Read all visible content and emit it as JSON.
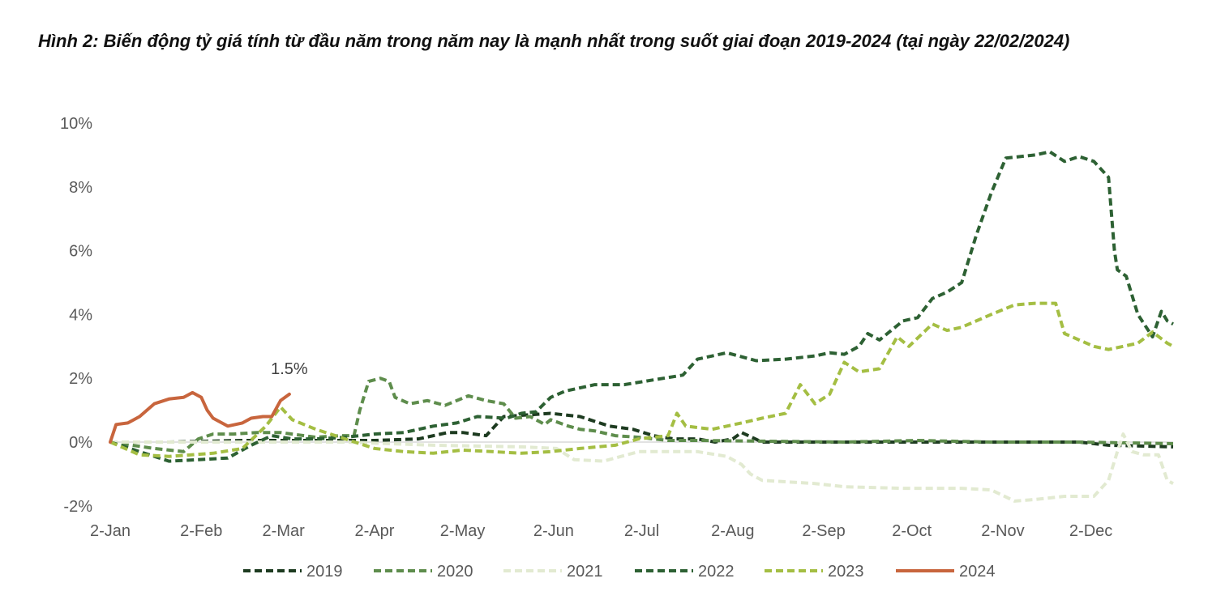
{
  "chart_data": {
    "type": "line",
    "title": "Hình 2: Biến động tỷ giá tính từ đầu năm trong năm nay là mạnh nhất trong suốt giai đoạn 2019-2024 (tại ngày 22/02/2024)",
    "xlabel": "",
    "ylabel": "",
    "ylim": [
      -2,
      10
    ],
    "y_ticks": [
      "-2%",
      "0%",
      "2%",
      "4%",
      "6%",
      "8%",
      "10%"
    ],
    "y_tick_values": [
      -2,
      0,
      2,
      4,
      6,
      8,
      10
    ],
    "x_unit": "day of year (0 = 2-Jan)",
    "xlim": [
      0,
      362
    ],
    "x_ticks": [
      "2-Jan",
      "2-Feb",
      "2-Mar",
      "2-Apr",
      "2-May",
      "2-Jun",
      "2-Jul",
      "2-Aug",
      "2-Sep",
      "2-Oct",
      "2-Nov",
      "2-Dec"
    ],
    "x_tick_values": [
      0,
      31,
      59,
      90,
      120,
      151,
      181,
      212,
      243,
      273,
      304,
      334
    ],
    "legend_position": "bottom",
    "data_label": {
      "text": "1.5%",
      "series": "2024"
    },
    "series": [
      {
        "name": "2019",
        "color": "#1d3b20",
        "style": "dashed",
        "points": [
          [
            0,
            0
          ],
          [
            20,
            0
          ],
          [
            45,
            0.05
          ],
          [
            60,
            0.05
          ],
          [
            90,
            0.05
          ],
          [
            105,
            0.1
          ],
          [
            115,
            0.3
          ],
          [
            120,
            0.3
          ],
          [
            128,
            0.2
          ],
          [
            134,
            0.8
          ],
          [
            150,
            0.9
          ],
          [
            160,
            0.8
          ],
          [
            170,
            0.5
          ],
          [
            178,
            0.4
          ],
          [
            185,
            0.2
          ],
          [
            192,
            0.1
          ],
          [
            200,
            0.1
          ],
          [
            206,
            0
          ],
          [
            212,
            0.1
          ],
          [
            215,
            0.3
          ],
          [
            222,
            0
          ],
          [
            250,
            0
          ],
          [
            275,
            0
          ],
          [
            300,
            0
          ],
          [
            330,
            0
          ],
          [
            340,
            -0.1
          ],
          [
            362,
            -0.15
          ]
        ]
      },
      {
        "name": "2020",
        "color": "#5e8d4c",
        "style": "dashed",
        "points": [
          [
            0,
            0
          ],
          [
            15,
            -0.2
          ],
          [
            25,
            -0.3
          ],
          [
            30,
            0.1
          ],
          [
            35,
            0.25
          ],
          [
            42,
            0.25
          ],
          [
            50,
            0.3
          ],
          [
            58,
            0.3
          ],
          [
            70,
            0.15
          ],
          [
            78,
            0.2
          ],
          [
            83,
            0.2
          ],
          [
            85,
            1
          ],
          [
            88,
            1.9
          ],
          [
            92,
            2
          ],
          [
            95,
            1.9
          ],
          [
            97,
            1.4
          ],
          [
            102,
            1.2
          ],
          [
            108,
            1.3
          ],
          [
            114,
            1.15
          ],
          [
            118,
            1.3
          ],
          [
            122,
            1.45
          ],
          [
            128,
            1.3
          ],
          [
            134,
            1.2
          ],
          [
            138,
            0.75
          ],
          [
            143,
            0.8
          ],
          [
            148,
            0.55
          ],
          [
            150,
            0.7
          ],
          [
            156,
            0.5
          ],
          [
            160,
            0.4
          ],
          [
            165,
            0.35
          ],
          [
            172,
            0.2
          ],
          [
            180,
            0.15
          ],
          [
            190,
            0.05
          ],
          [
            200,
            0.05
          ],
          [
            250,
            0
          ],
          [
            275,
            0.05
          ],
          [
            300,
            0
          ],
          [
            330,
            0
          ],
          [
            362,
            -0.05
          ]
        ]
      },
      {
        "name": "2021",
        "color": "#e2ead1",
        "style": "dashed",
        "points": [
          [
            0,
            0
          ],
          [
            40,
            0
          ],
          [
            60,
            0
          ],
          [
            80,
            0
          ],
          [
            110,
            -0.1
          ],
          [
            140,
            -0.15
          ],
          [
            152,
            -0.2
          ],
          [
            158,
            -0.55
          ],
          [
            168,
            -0.6
          ],
          [
            180,
            -0.3
          ],
          [
            200,
            -0.3
          ],
          [
            210,
            -0.45
          ],
          [
            215,
            -0.7
          ],
          [
            218,
            -1.0
          ],
          [
            222,
            -1.2
          ],
          [
            240,
            -1.3
          ],
          [
            250,
            -1.4
          ],
          [
            270,
            -1.45
          ],
          [
            280,
            -1.45
          ],
          [
            290,
            -1.45
          ],
          [
            300,
            -1.5
          ],
          [
            308,
            -1.85
          ],
          [
            315,
            -1.8
          ],
          [
            325,
            -1.7
          ],
          [
            335,
            -1.7
          ],
          [
            340,
            -1.2
          ],
          [
            343,
            -0.3
          ],
          [
            345,
            0.25
          ],
          [
            348,
            -0.3
          ],
          [
            352,
            -0.4
          ],
          [
            357,
            -0.4
          ],
          [
            360,
            -1.2
          ],
          [
            362,
            -1.3
          ]
        ]
      },
      {
        "name": "2022",
        "color": "#2d6133",
        "style": "dashed",
        "points": [
          [
            0,
            0
          ],
          [
            10,
            -0.3
          ],
          [
            20,
            -0.6
          ],
          [
            30,
            -0.55
          ],
          [
            40,
            -0.5
          ],
          [
            48,
            -0.1
          ],
          [
            55,
            0.2
          ],
          [
            62,
            0.1
          ],
          [
            70,
            0.1
          ],
          [
            80,
            0.15
          ],
          [
            90,
            0.25
          ],
          [
            100,
            0.3
          ],
          [
            110,
            0.5
          ],
          [
            118,
            0.6
          ],
          [
            125,
            0.8
          ],
          [
            135,
            0.75
          ],
          [
            140,
            0.9
          ],
          [
            145,
            0.95
          ],
          [
            150,
            1.4
          ],
          [
            155,
            1.6
          ],
          [
            165,
            1.8
          ],
          [
            175,
            1.8
          ],
          [
            185,
            1.95
          ],
          [
            195,
            2.1
          ],
          [
            200,
            2.6
          ],
          [
            210,
            2.8
          ],
          [
            220,
            2.55
          ],
          [
            230,
            2.6
          ],
          [
            240,
            2.7
          ],
          [
            245,
            2.8
          ],
          [
            250,
            2.75
          ],
          [
            255,
            3.0
          ],
          [
            258,
            3.4
          ],
          [
            262,
            3.2
          ],
          [
            270,
            3.8
          ],
          [
            275,
            3.9
          ],
          [
            280,
            4.5
          ],
          [
            285,
            4.7
          ],
          [
            290,
            5.0
          ],
          [
            295,
            6.5
          ],
          [
            300,
            7.8
          ],
          [
            305,
            8.9
          ],
          [
            315,
            9.0
          ],
          [
            320,
            9.1
          ],
          [
            325,
            8.8
          ],
          [
            330,
            8.95
          ],
          [
            335,
            8.8
          ],
          [
            340,
            8.3
          ],
          [
            342,
            6.0
          ],
          [
            343,
            5.4
          ],
          [
            346,
            5.2
          ],
          [
            350,
            4.0
          ],
          [
            355,
            3.3
          ],
          [
            358,
            4.1
          ],
          [
            360,
            3.8
          ],
          [
            362,
            3.7
          ]
        ]
      },
      {
        "name": "2023",
        "color": "#a4be43",
        "style": "dashed",
        "points": [
          [
            0,
            0
          ],
          [
            10,
            -0.4
          ],
          [
            20,
            -0.45
          ],
          [
            35,
            -0.35
          ],
          [
            45,
            -0.2
          ],
          [
            53,
            0.5
          ],
          [
            58,
            1.1
          ],
          [
            62,
            0.7
          ],
          [
            70,
            0.4
          ],
          [
            80,
            0.1
          ],
          [
            90,
            -0.2
          ],
          [
            100,
            -0.3
          ],
          [
            110,
            -0.35
          ],
          [
            120,
            -0.25
          ],
          [
            130,
            -0.3
          ],
          [
            140,
            -0.35
          ],
          [
            150,
            -0.3
          ],
          [
            160,
            -0.2
          ],
          [
            172,
            -0.1
          ],
          [
            180,
            0.1
          ],
          [
            190,
            0.2
          ],
          [
            193,
            0.9
          ],
          [
            196,
            0.5
          ],
          [
            205,
            0.4
          ],
          [
            215,
            0.6
          ],
          [
            222,
            0.75
          ],
          [
            230,
            0.9
          ],
          [
            235,
            1.8
          ],
          [
            240,
            1.2
          ],
          [
            245,
            1.5
          ],
          [
            250,
            2.5
          ],
          [
            255,
            2.2
          ],
          [
            262,
            2.3
          ],
          [
            268,
            3.3
          ],
          [
            272,
            3.0
          ],
          [
            280,
            3.7
          ],
          [
            285,
            3.5
          ],
          [
            290,
            3.6
          ],
          [
            300,
            4.0
          ],
          [
            308,
            4.3
          ],
          [
            315,
            4.35
          ],
          [
            322,
            4.35
          ],
          [
            325,
            3.4
          ],
          [
            330,
            3.2
          ],
          [
            335,
            3.0
          ],
          [
            340,
            2.9
          ],
          [
            345,
            3.0
          ],
          [
            350,
            3.1
          ],
          [
            355,
            3.45
          ],
          [
            360,
            3.1
          ],
          [
            362,
            3.0
          ]
        ]
      },
      {
        "name": "2024",
        "color": "#c8653d",
        "style": "solid",
        "points": [
          [
            0,
            0
          ],
          [
            2,
            0.55
          ],
          [
            6,
            0.6
          ],
          [
            10,
            0.8
          ],
          [
            15,
            1.2
          ],
          [
            20,
            1.35
          ],
          [
            25,
            1.4
          ],
          [
            28,
            1.55
          ],
          [
            31,
            1.4
          ],
          [
            33,
            1.0
          ],
          [
            35,
            0.75
          ],
          [
            40,
            0.5
          ],
          [
            45,
            0.6
          ],
          [
            48,
            0.75
          ],
          [
            52,
            0.8
          ],
          [
            55,
            0.8
          ],
          [
            58,
            1.3
          ],
          [
            61,
            1.5
          ]
        ]
      }
    ]
  }
}
